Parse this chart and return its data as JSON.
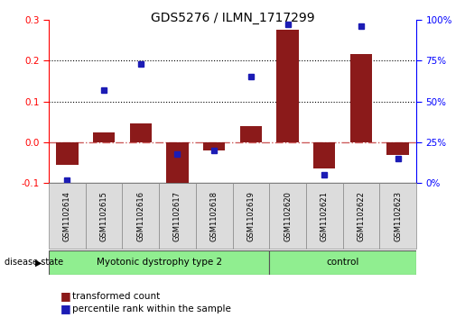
{
  "title": "GDS5276 / ILMN_1717299",
  "samples": [
    "GSM1102614",
    "GSM1102615",
    "GSM1102616",
    "GSM1102617",
    "GSM1102618",
    "GSM1102619",
    "GSM1102620",
    "GSM1102621",
    "GSM1102622",
    "GSM1102623"
  ],
  "transformed_count": [
    -0.055,
    0.025,
    0.045,
    -0.105,
    -0.02,
    0.04,
    0.275,
    -0.065,
    0.215,
    -0.03
  ],
  "percentile_rank": [
    2,
    57,
    73,
    18,
    20,
    65,
    97,
    5,
    96,
    15
  ],
  "disease_groups": [
    {
      "label": "Myotonic dystrophy type 2",
      "start": 0,
      "end": 6,
      "color": "#90EE90"
    },
    {
      "label": "control",
      "start": 6,
      "end": 10,
      "color": "#90EE90"
    }
  ],
  "ylim_left": [
    -0.1,
    0.3
  ],
  "ylim_right": [
    0,
    100
  ],
  "yticks_left": [
    -0.1,
    0.0,
    0.1,
    0.2,
    0.3
  ],
  "yticks_right": [
    0,
    25,
    50,
    75,
    100
  ],
  "bar_color": "#8B1A1A",
  "scatter_color": "#1C1CB5",
  "zero_line_color": "#CD5C5C",
  "grid_color": "black",
  "bg_color": "#DCDCDC",
  "green_color": "#90EE90",
  "legend_items": [
    "transformed count",
    "percentile rank within the sample"
  ],
  "disease_state_label": "disease state"
}
